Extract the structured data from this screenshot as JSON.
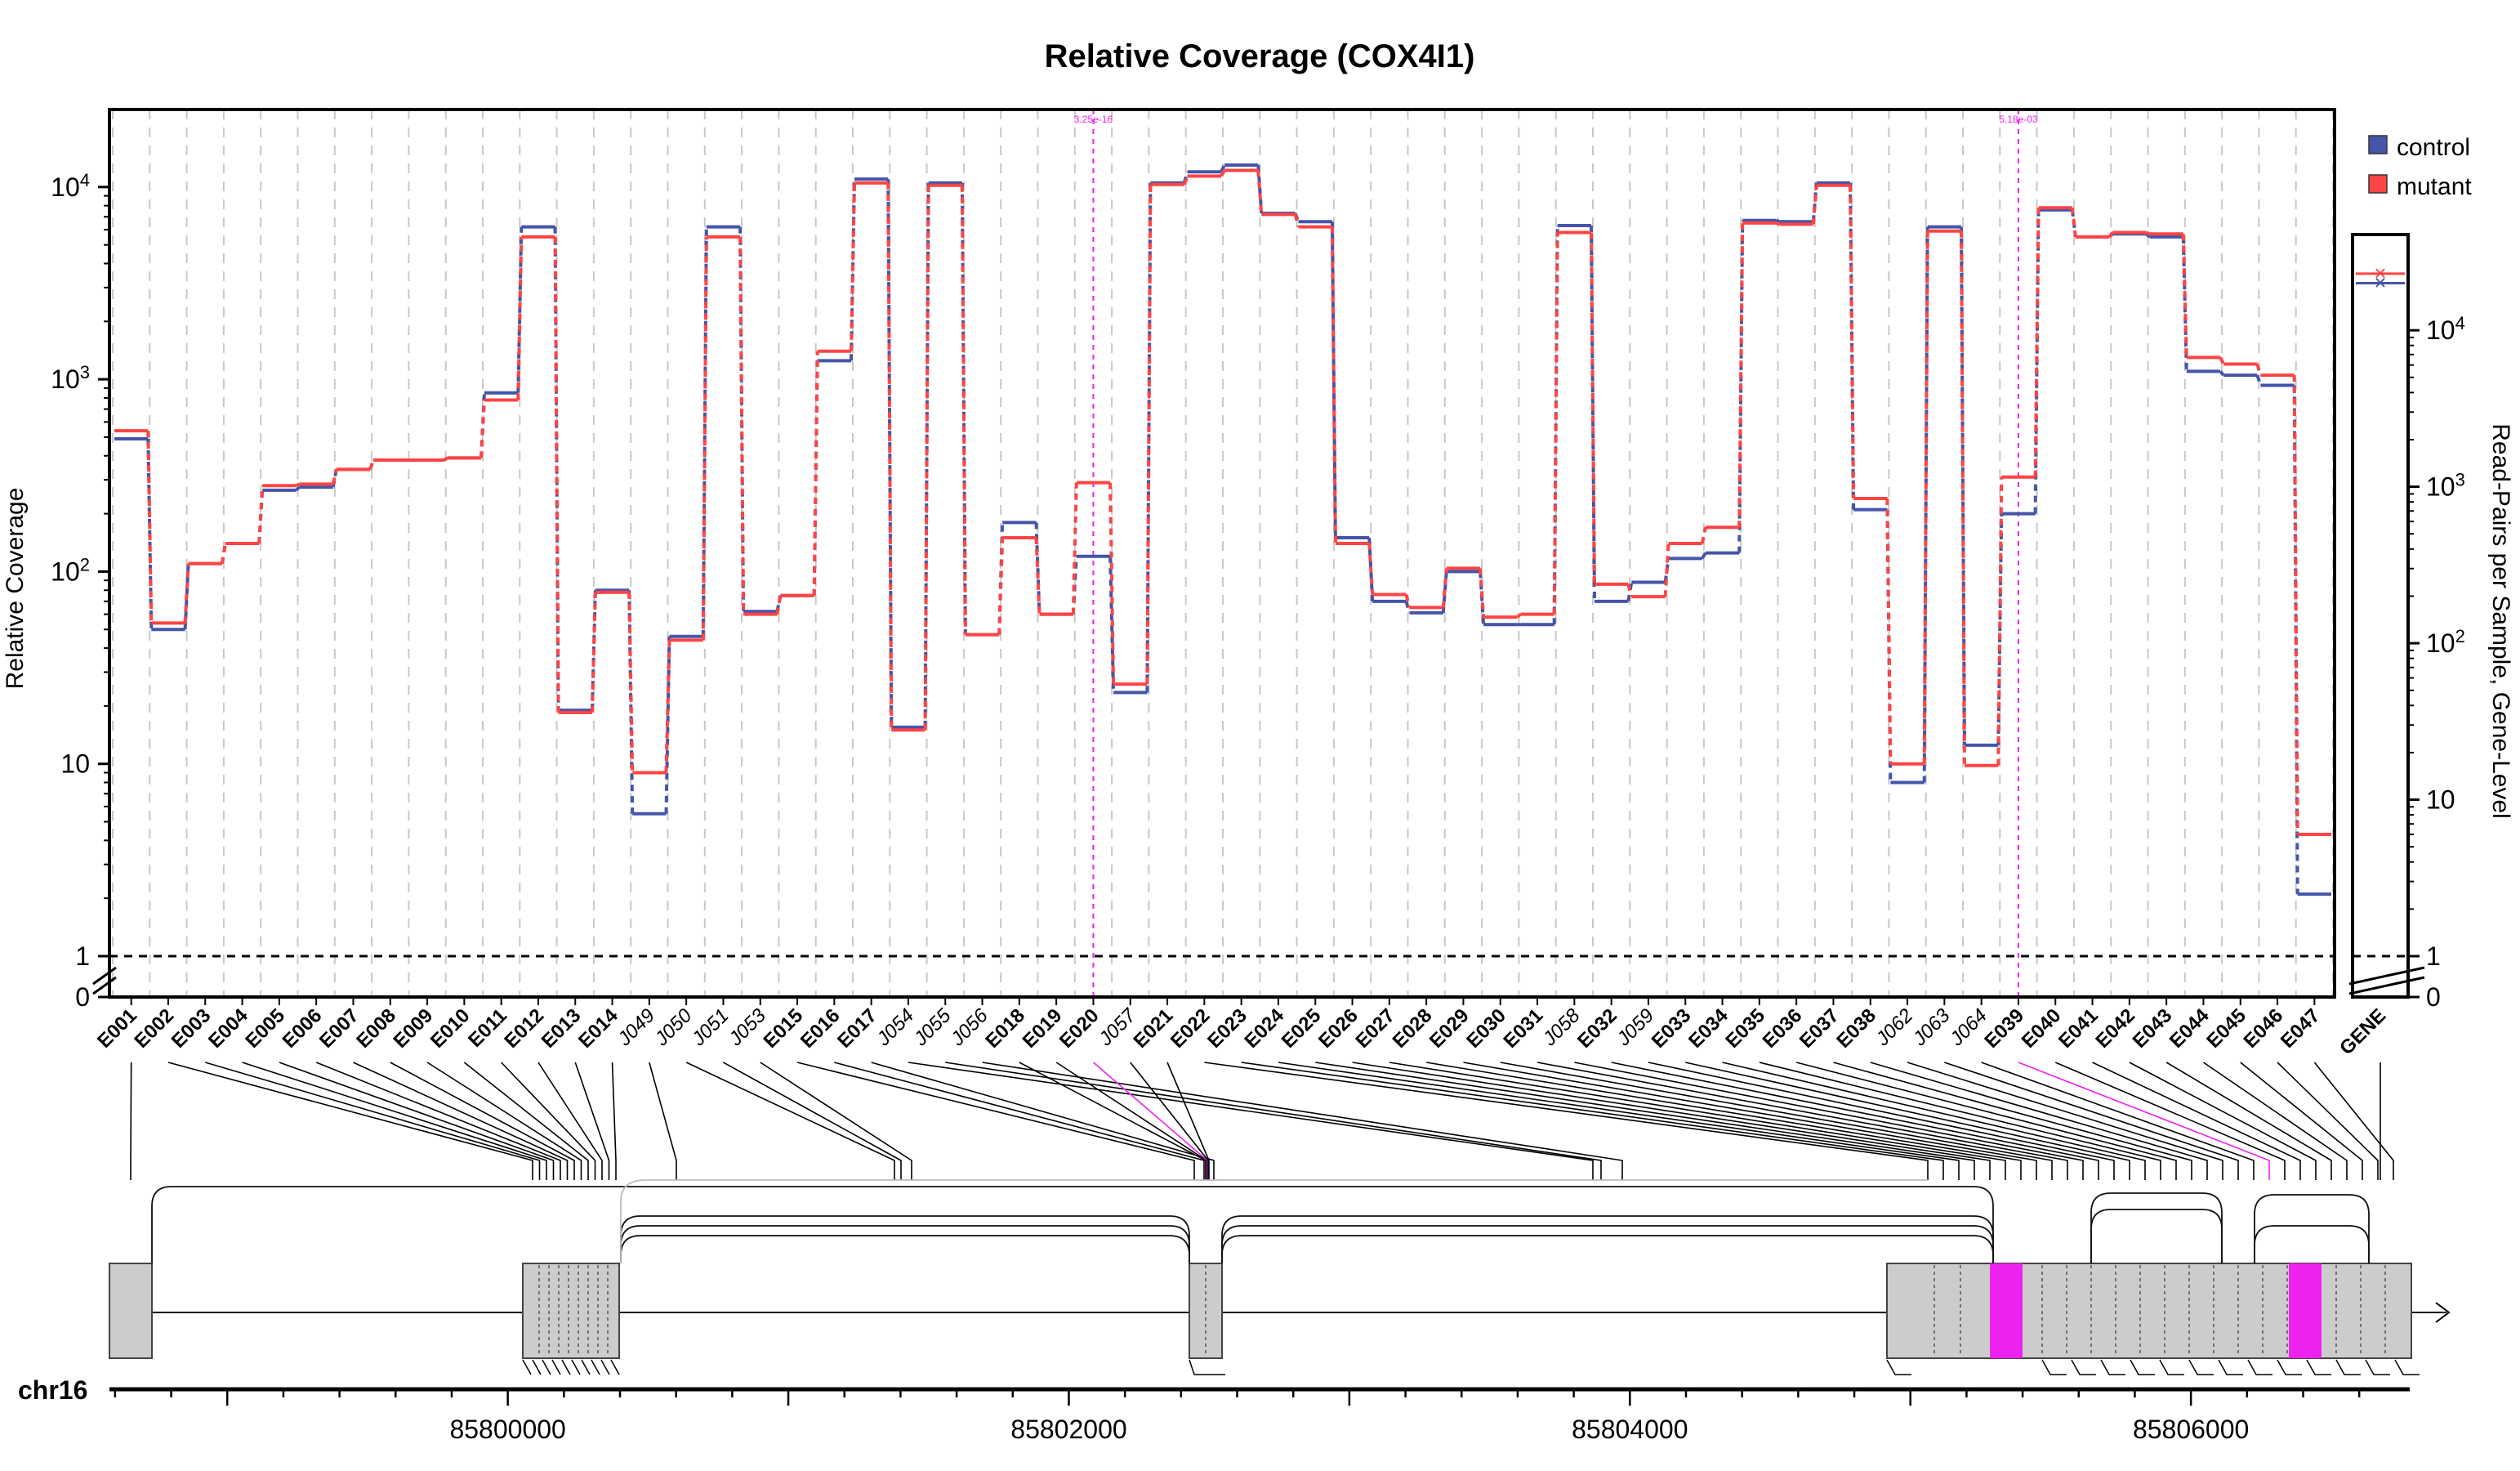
{
  "chart_data": {
    "type": "line",
    "title": "Relative Coverage (COX4I1)",
    "ylabel": "Relative Coverage",
    "ylabel_right": "Read-Pairs per Sample, Gene-Level",
    "y_scale": "log",
    "ylim": [
      1,
      20000
    ],
    "y_ticks": [
      "1",
      "10",
      "10^2",
      "10^3",
      "10^4"
    ],
    "y_zero_label": "0",
    "legend": {
      "position": "top-right",
      "entries": [
        {
          "name": "control",
          "color": "#4455aa"
        },
        {
          "name": "mutant",
          "color": "#ff4444"
        }
      ]
    },
    "reference_line": {
      "y": 1,
      "style": "dashed"
    },
    "categories": [
      "E001",
      "E002",
      "E003",
      "E004",
      "E005",
      "E006",
      "E007",
      "E008",
      "E009",
      "E010",
      "E011",
      "E012",
      "E013",
      "E014",
      "J049",
      "J050",
      "J051",
      "J053",
      "E015",
      "E016",
      "E017",
      "J054",
      "J055",
      "J056",
      "E018",
      "E019",
      "E020",
      "J057",
      "E021",
      "E022",
      "E023",
      "E024",
      "E025",
      "E026",
      "E027",
      "E028",
      "E029",
      "E030",
      "E031",
      "J058",
      "E032",
      "J059",
      "E033",
      "E034",
      "E035",
      "E036",
      "E037",
      "E038",
      "J062",
      "J063",
      "J064",
      "E039",
      "E040",
      "E041",
      "E042",
      "E043",
      "E044",
      "E045",
      "E046",
      "E047"
    ],
    "significant_features": [
      {
        "category": "E020",
        "label": "3.25e-16"
      },
      {
        "category": "E039",
        "label": "5.18e-03"
      }
    ],
    "series": [
      {
        "name": "control",
        "color": "#4455aa",
        "values": [
          490,
          50,
          110,
          140,
          265,
          275,
          340,
          380,
          380,
          390,
          850,
          6200,
          19,
          80,
          5.5,
          46,
          6200,
          62,
          75,
          1250,
          11000,
          15.5,
          10500,
          47,
          180,
          60,
          120,
          23.5,
          10500,
          12000,
          13000,
          7300,
          6600,
          150,
          70,
          61,
          100,
          53,
          53,
          6300,
          70,
          88,
          117,
          125,
          6700,
          6600,
          10500,
          210,
          8,
          6200,
          12.5,
          200,
          7600,
          5500,
          5700,
          5500,
          1100,
          1050,
          930,
          2.1
        ]
      },
      {
        "name": "mutant",
        "color": "#ff4444",
        "values": [
          540,
          54,
          110,
          140,
          280,
          285,
          340,
          380,
          380,
          390,
          780,
          5500,
          18.5,
          78,
          9,
          44,
          5500,
          60,
          75,
          1400,
          10500,
          15,
          10200,
          47,
          150,
          60,
          290,
          26,
          10300,
          11400,
          12200,
          7200,
          6200,
          140,
          76,
          65,
          104,
          58,
          60,
          5800,
          86,
          74,
          140,
          170,
          6500,
          6400,
          10200,
          240,
          10,
          5900,
          9.8,
          310,
          7800,
          5500,
          5800,
          5700,
          1300,
          1200,
          1050,
          4.3
        ]
      }
    ],
    "gene_level": {
      "label": "GENE",
      "y_ticks": [
        "1",
        "10",
        "10^2",
        "10^3",
        "10^4"
      ],
      "y_zero_label": "0",
      "control": 20000,
      "mutant": 23000
    },
    "genome_track": {
      "chromosome": "chr16",
      "ticks": [
        "85800000",
        "85802000",
        "85804000",
        "85806000"
      ],
      "range": [
        85798580,
        85806780
      ],
      "highlight_color": "#ee22ee"
    }
  }
}
